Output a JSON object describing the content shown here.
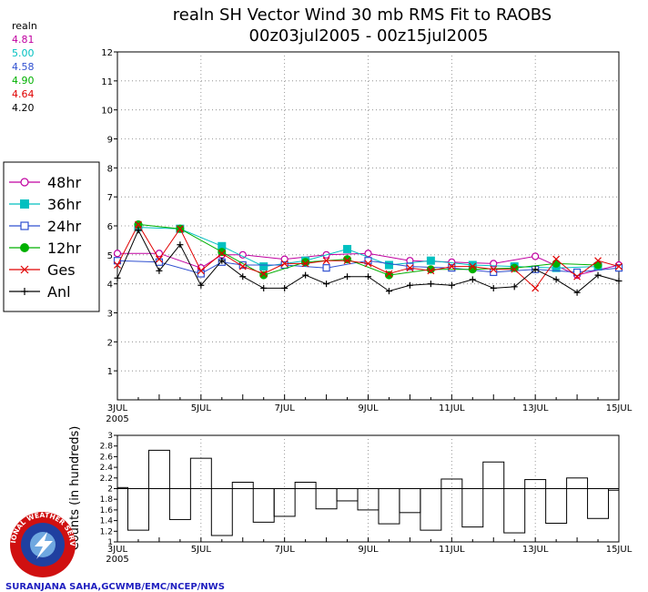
{
  "title": {
    "line1": "realn SH Vector Wind 30 mb RMS Fit to RAOBS",
    "line2": "00z03jul2005 - 00z15jul2005"
  },
  "stats": {
    "label": "realn",
    "entries": [
      {
        "value": "4.81",
        "color": "#c000a0"
      },
      {
        "value": "5.00",
        "color": "#00c0c0"
      },
      {
        "value": "4.58",
        "color": "#3050d0"
      },
      {
        "value": "4.90",
        "color": "#00b000"
      },
      {
        "value": "4.64",
        "color": "#e00000"
      },
      {
        "value": "4.20",
        "color": "#000000"
      }
    ]
  },
  "footer": "SURANJANA SAHA,GCWMB/EMC/NCEP/NWS",
  "logo": {
    "text": "NATIONAL WEATHER SERVICE",
    "icon": "nws-logo"
  },
  "chart_data": [
    {
      "type": "line",
      "ylim": [
        0,
        12
      ],
      "y_ticks": [
        "1",
        "2",
        "3",
        "4",
        "5",
        "6",
        "7",
        "8",
        "9",
        "10",
        "11",
        "12"
      ],
      "x_range": [
        0,
        12
      ],
      "x_tick_labels": [
        {
          "x": 0,
          "label": "3JUL",
          "sub": "2005"
        },
        {
          "x": 2,
          "label": "5JUL"
        },
        {
          "x": 4,
          "label": "7JUL"
        },
        {
          "x": 6,
          "label": "9JUL"
        },
        {
          "x": 8,
          "label": "11JUL"
        },
        {
          "x": 10,
          "label": "13JUL"
        },
        {
          "x": 12,
          "label": "15JUL"
        }
      ],
      "grid": true,
      "legend_placement": "left",
      "x": [
        0,
        0.5,
        1,
        1.5,
        2,
        2.5,
        3,
        3.5,
        4,
        4.5,
        5,
        5.5,
        6,
        6.5,
        7,
        7.5,
        8,
        8.5,
        9,
        9.5,
        10,
        10.5,
        11,
        11.5,
        12
      ],
      "series": [
        {
          "name": "48hr",
          "color": "#c000a0",
          "marker": "open-circle",
          "values": [
            5.05,
            null,
            5.05,
            null,
            4.55,
            5.0,
            5.0,
            null,
            4.85,
            null,
            5.0,
            null,
            5.05,
            null,
            4.8,
            null,
            4.75,
            null,
            4.7,
            null,
            4.95,
            null,
            4.3,
            null,
            4.65
          ]
        },
        {
          "name": "36hr",
          "color": "#00c0c0",
          "marker": "filled-square",
          "values": [
            null,
            5.95,
            null,
            5.9,
            null,
            5.3,
            null,
            4.6,
            null,
            4.8,
            null,
            5.2,
            null,
            4.65,
            null,
            4.8,
            null,
            4.65,
            null,
            4.6,
            null,
            4.55,
            null,
            4.6,
            null
          ]
        },
        {
          "name": "24hr",
          "color": "#3050d0",
          "marker": "open-square",
          "values": [
            4.8,
            null,
            4.75,
            null,
            4.35,
            4.75,
            4.65,
            null,
            4.65,
            null,
            4.55,
            null,
            4.8,
            null,
            4.6,
            null,
            4.55,
            null,
            4.4,
            null,
            4.5,
            null,
            4.4,
            null,
            4.55
          ]
        },
        {
          "name": "12hr",
          "color": "#00b000",
          "marker": "filled-circle",
          "values": [
            null,
            6.05,
            null,
            5.9,
            null,
            5.1,
            null,
            4.3,
            null,
            4.75,
            null,
            4.85,
            null,
            4.3,
            null,
            4.5,
            null,
            4.5,
            null,
            4.55,
            null,
            4.7,
            null,
            4.65,
            null
          ]
        },
        {
          "name": "Ges",
          "color": "#e00000",
          "marker": "x",
          "values": [
            4.65,
            6.05,
            4.85,
            5.9,
            4.45,
            5.05,
            4.6,
            4.35,
            4.7,
            4.7,
            4.8,
            4.8,
            4.7,
            4.35,
            4.55,
            4.45,
            4.6,
            4.6,
            4.5,
            4.5,
            3.85,
            4.85,
            4.25,
            4.8,
            4.6
          ]
        },
        {
          "name": "Anl",
          "color": "#000000",
          "marker": "plus",
          "values": [
            4.2,
            5.85,
            4.45,
            5.35,
            3.95,
            4.8,
            4.25,
            3.85,
            3.85,
            4.3,
            4.0,
            4.25,
            4.25,
            3.75,
            3.95,
            4.0,
            3.95,
            4.15,
            3.85,
            3.9,
            4.5,
            4.15,
            3.7,
            4.3,
            4.1
          ]
        }
      ]
    },
    {
      "type": "bar",
      "ylabel": "Counts (in hundreds)",
      "ylim": [
        1,
        3
      ],
      "y_ticks": [
        "1",
        "1.2",
        "1.4",
        "1.6",
        "1.8",
        "2",
        "2.2",
        "2.4",
        "2.6",
        "2.8",
        "3"
      ],
      "reference_line": 2,
      "x": [
        0,
        0.5,
        1,
        1.5,
        2,
        2.5,
        3,
        3.5,
        4,
        4.5,
        5,
        5.5,
        6,
        6.5,
        7,
        7.5,
        8,
        8.5,
        9,
        9.5,
        10,
        10.5,
        11,
        11.5,
        12
      ],
      "values": [
        2.02,
        1.22,
        2.72,
        1.42,
        2.57,
        1.12,
        2.12,
        1.37,
        1.48,
        2.12,
        1.62,
        1.77,
        1.6,
        1.34,
        1.55,
        1.22,
        2.18,
        1.28,
        2.5,
        1.17,
        2.17,
        1.35,
        2.2,
        1.44,
        1.97
      ]
    }
  ]
}
